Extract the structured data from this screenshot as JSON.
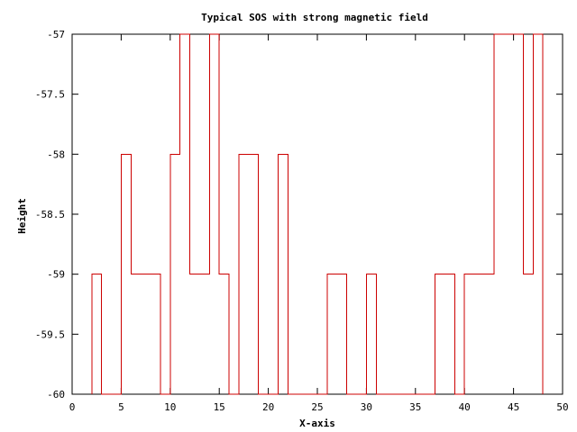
{
  "chart_data": {
    "type": "line",
    "step": true,
    "title": "Typical SOS with strong magnetic field",
    "xlabel": "X-axis",
    "ylabel": "Height",
    "xlim": [
      0,
      50
    ],
    "ylim": [
      -60,
      -57
    ],
    "xticks": [
      0,
      5,
      10,
      15,
      20,
      25,
      30,
      35,
      40,
      45,
      50
    ],
    "xtick_labels": [
      "0",
      "5",
      "10",
      "15",
      "20",
      "25",
      "30",
      "35",
      "40",
      "45",
      "50"
    ],
    "yticks": [
      -60,
      -59.5,
      -59,
      -58.5,
      -58,
      -57.5,
      -57
    ],
    "ytick_labels": [
      "-60",
      "-59.5",
      "-59",
      "-58.5",
      "-58",
      "-57.5",
      "-57"
    ],
    "grid": false,
    "legend": "none",
    "color": "#cc0000",
    "series": [
      {
        "x": [
          2,
          3,
          5,
          6,
          9,
          10,
          11,
          12,
          14,
          15,
          16,
          17,
          19,
          21,
          22,
          26,
          28,
          30,
          31,
          37,
          39,
          40,
          43,
          46,
          47,
          48
        ],
        "y": [
          -59,
          -60,
          -58,
          -59,
          -60,
          -58,
          -57,
          -59,
          -57,
          -59,
          -60,
          -58,
          -60,
          -58,
          -60,
          -59,
          -60,
          -59,
          -60,
          -59,
          -60,
          -59,
          -57,
          -59,
          -57,
          -60
        ]
      }
    ]
  }
}
